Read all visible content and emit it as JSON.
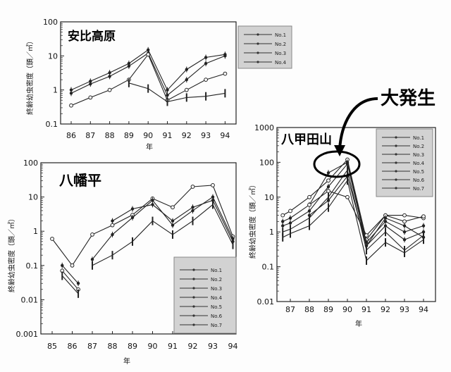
{
  "annotation": {
    "callout_label": "大発生"
  },
  "chart_data": [
    {
      "type": "line",
      "title": "安比高原",
      "xlabel": "年",
      "ylabel": "終齢幼虫密度（頭／㎡）",
      "yscale": "log",
      "x": [
        "86",
        "87",
        "88",
        "89",
        "90",
        "91",
        "92",
        "93",
        "94"
      ],
      "x_ticks": [
        "86",
        "87",
        "88",
        "89",
        "90",
        "91",
        "92",
        "93",
        "94"
      ],
      "y_ticks": [
        "0.1",
        "1",
        "10",
        "100"
      ],
      "ylim": [
        0.1,
        100
      ],
      "legend": [
        "No.1",
        "No.2",
        "No.3",
        "No.4"
      ],
      "legend_position": "right",
      "series": [
        {
          "name": "No.1",
          "marker": "circle",
          "points": [
            [
              86,
              1.0
            ],
            [
              87,
              1.8
            ],
            [
              88,
              3.2
            ],
            [
              89,
              6.0
            ],
            [
              90,
              15
            ],
            [
              91,
              1.0
            ],
            [
              92,
              4.0
            ],
            [
              93,
              9.0
            ],
            [
              94,
              11
            ]
          ]
        },
        {
          "name": "No.2",
          "marker": "dot",
          "points": [
            [
              86,
              0.8
            ],
            [
              87,
              1.5
            ],
            [
              88,
              2.5
            ],
            [
              89,
              5.0
            ],
            [
              90,
              12
            ],
            [
              91,
              0.7
            ],
            [
              92,
              2.0
            ],
            [
              93,
              6.0
            ],
            [
              94,
              10
            ]
          ]
        },
        {
          "name": "No.3",
          "marker": "open",
          "points": [
            [
              86,
              0.35
            ],
            [
              87,
              0.6
            ],
            [
              88,
              1.0
            ],
            [
              89,
              2.0
            ],
            [
              90,
              11
            ],
            [
              91,
              0.5
            ],
            [
              92,
              1.0
            ],
            [
              93,
              2.0
            ],
            [
              94,
              3.0
            ]
          ]
        },
        {
          "name": "No.4",
          "marker": "bar",
          "points": [
            [
              89,
              1.6
            ],
            [
              90,
              1.1
            ],
            [
              91,
              0.45
            ],
            [
              92,
              0.6
            ],
            [
              93,
              0.65
            ],
            [
              94,
              0.8
            ]
          ]
        }
      ]
    },
    {
      "type": "line",
      "title": "八幡平",
      "xlabel": "年",
      "ylabel": "終齢幼虫密度（頭／㎡）",
      "yscale": "log",
      "x": [
        "85",
        "86",
        "87",
        "88",
        "89",
        "90",
        "91",
        "92",
        "93",
        "94"
      ],
      "x_ticks": [
        "85",
        "86",
        "87",
        "88",
        "89",
        "90",
        "91",
        "92",
        "93",
        "94"
      ],
      "y_ticks": [
        "0.001",
        "0.01",
        "0.1",
        "1",
        "10",
        "100"
      ],
      "ylim": [
        0.001,
        100
      ],
      "legend": [
        "No.1",
        "No.2",
        "No.3",
        "No.4",
        "No.5",
        "No.6",
        "No.7"
      ],
      "legend_position": "bottom-right",
      "series": [
        {
          "name": "No.1",
          "marker": "open",
          "points": [
            [
              85,
              0.6
            ],
            [
              86,
              0.1
            ],
            [
              87,
              0.8
            ],
            [
              88,
              1.5
            ],
            [
              89,
              3.0
            ],
            [
              90,
              9.0
            ],
            [
              91,
              5.0
            ],
            [
              92,
              20
            ],
            [
              93,
              22
            ],
            [
              94,
              0.7
            ]
          ]
        },
        {
          "name": "No.2",
          "marker": "dot",
          "points": [
            [
              87,
              0.15
            ],
            [
              88,
              0.8
            ],
            [
              89,
              2.5
            ],
            [
              90,
              8.0
            ],
            [
              91,
              1.5
            ],
            [
              92,
              4.0
            ],
            [
              93,
              10
            ],
            [
              94,
              0.6
            ]
          ]
        },
        {
          "name": "No.3",
          "marker": "dot",
          "points": [
            [
              88,
              2.0
            ],
            [
              89,
              4.5
            ],
            [
              90,
              6.0
            ],
            [
              91,
              2.0
            ],
            [
              92,
              5.0
            ],
            [
              93,
              8.0
            ],
            [
              94,
              0.5
            ]
          ]
        },
        {
          "name": "No.4",
          "marker": "bar",
          "points": [
            [
              87,
              0.1
            ],
            [
              88,
              0.2
            ],
            [
              89,
              0.5
            ],
            [
              90,
              2.0
            ],
            [
              91,
              0.8
            ],
            [
              92,
              2.0
            ],
            [
              93,
              6.0
            ],
            [
              94,
              0.4
            ]
          ]
        },
        {
          "name": "No.5",
          "marker": "open",
          "points": [
            [
              85.5,
              0.07
            ],
            [
              86.3,
              0.02
            ]
          ]
        },
        {
          "name": "No.6",
          "marker": "dot",
          "points": [
            [
              85.5,
              0.1
            ],
            [
              86.3,
              0.03
            ]
          ]
        },
        {
          "name": "No.7",
          "marker": "bar",
          "points": [
            [
              85.5,
              0.05
            ],
            [
              86.3,
              0.015
            ]
          ]
        }
      ]
    },
    {
      "type": "line",
      "title": "八甲田山",
      "xlabel": "年",
      "ylabel": "終齢幼虫密度（頭／㎡）",
      "yscale": "log",
      "x": [
        "87",
        "88",
        "89",
        "90",
        "91",
        "92",
        "93",
        "94"
      ],
      "x_ticks": [
        "87",
        "88",
        "89",
        "90",
        "91",
        "92",
        "93",
        "94"
      ],
      "y_ticks": [
        "0.01",
        "0.1",
        "1",
        "10",
        "100",
        "1000"
      ],
      "ylim": [
        0.01,
        1000
      ],
      "legend": [
        "No.1",
        "No.2",
        "No.3",
        "No.4",
        "No.5",
        "No.6",
        "No.7"
      ],
      "legend_position": "top-right",
      "series": [
        {
          "name": "No.1",
          "marker": "open",
          "points": [
            [
              86.6,
              3.0
            ],
            [
              87,
              4.0
            ],
            [
              88,
              10
            ],
            [
              89,
              30
            ],
            [
              90,
              120
            ],
            [
              91,
              0.6
            ],
            [
              92,
              3.0
            ],
            [
              93,
              3.0
            ],
            [
              94,
              2.5
            ]
          ]
        },
        {
          "name": "No.2",
          "marker": "dot",
          "points": [
            [
              86.6,
              2.0
            ],
            [
              87,
              2.5
            ],
            [
              88,
              6.0
            ],
            [
              89,
              50
            ],
            [
              90,
              100
            ],
            [
              91,
              0.5
            ],
            [
              92,
              2.0
            ],
            [
              93,
              1.0
            ],
            [
              94,
              1.5
            ]
          ]
        },
        {
          "name": "No.3",
          "marker": "dot",
          "points": [
            [
              86.6,
              1.5
            ],
            [
              87,
              1.8
            ],
            [
              88,
              4.0
            ],
            [
              89,
              20
            ],
            [
              90,
              90
            ],
            [
              91,
              0.4
            ],
            [
              92,
              1.5
            ],
            [
              93,
              0.6
            ],
            [
              94,
              1.0
            ]
          ]
        },
        {
          "name": "No.4",
          "marker": "bar",
          "points": [
            [
              86.6,
              1.0
            ],
            [
              87,
              1.2
            ],
            [
              88,
              2.5
            ],
            [
              89,
              10
            ],
            [
              90,
              60
            ],
            [
              91,
              0.3
            ],
            [
              92,
              1.0
            ],
            [
              93,
              0.3
            ],
            [
              94,
              0.8
            ]
          ]
        },
        {
          "name": "No.5",
          "marker": "bar",
          "points": [
            [
              86.6,
              0.7
            ],
            [
              87,
              0.9
            ],
            [
              88,
              1.5
            ],
            [
              89,
              5.0
            ],
            [
              90,
              30
            ],
            [
              91,
              0.15
            ],
            [
              92,
              0.5
            ],
            [
              93,
              0.25
            ],
            [
              94,
              0.6
            ]
          ]
        },
        {
          "name": "No.6",
          "marker": "open",
          "points": [
            [
              88,
              6.0
            ],
            [
              89,
              15
            ],
            [
              90,
              10
            ],
            [
              91,
              0.8
            ],
            [
              92,
              3.0
            ],
            [
              93,
              2.0
            ],
            [
              94,
              2.8
            ]
          ]
        },
        {
          "name": "No.7",
          "marker": "dot",
          "points": [
            [
              88,
              3.0
            ],
            [
              89,
              8.0
            ],
            [
              90,
              40
            ],
            [
              91,
              0.4
            ],
            [
              92,
              2.5
            ],
            [
              93,
              1.5
            ],
            [
              94,
              0.7
            ]
          ]
        }
      ]
    }
  ]
}
